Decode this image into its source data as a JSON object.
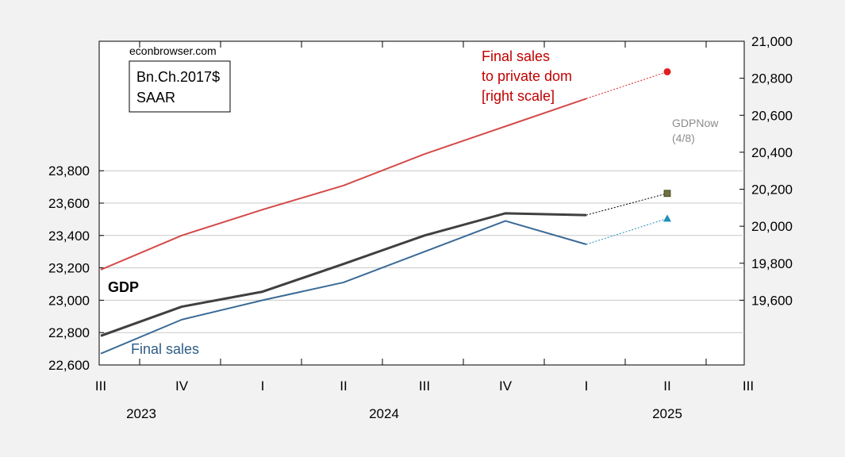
{
  "chart_data": {
    "type": "line",
    "source_label": "econbrowser.com",
    "units_box": [
      "Bn.Ch.2017$",
      "SAAR"
    ],
    "x_quarter_labels": [
      "III",
      "IV",
      "I",
      "II",
      "III",
      "IV",
      "I",
      "II",
      "III"
    ],
    "x_year_labels": [
      {
        "label": "2023",
        "quarter_index": 0.5
      },
      {
        "label": "2024",
        "quarter_index": 3.5
      },
      {
        "label": "2025",
        "quarter_index": 7.0
      }
    ],
    "left_axis": {
      "min": 22600,
      "max": 24600,
      "ticks": [
        22600,
        22800,
        23000,
        23200,
        23400,
        23600,
        23800
      ],
      "tick_labels": [
        "22,600",
        "22,800",
        "23,000",
        "23,200",
        "23,400",
        "23,600",
        "23,800"
      ]
    },
    "right_axis": {
      "min": 19250,
      "max": 21000,
      "ticks": [
        19600,
        19800,
        20000,
        20200,
        20400,
        20600,
        20800,
        21000
      ],
      "tick_labels": [
        "19,600",
        "19,800",
        "20,000",
        "20,200",
        "20,400",
        "20,600",
        "20,800",
        "21,000"
      ]
    },
    "series": [
      {
        "name": "GDP",
        "axis": "left",
        "color": "#404040",
        "x": [
          "2023Q3",
          "2023Q4",
          "2024Q1",
          "2024Q2",
          "2024Q3",
          "2024Q4",
          "2025Q1"
        ],
        "values": [
          22780,
          22960,
          23053,
          23224,
          23400,
          23537,
          23526
        ]
      },
      {
        "name": "Final sales",
        "axis": "left",
        "color": "#3a6a96",
        "x": [
          "2023Q3",
          "2023Q4",
          "2024Q1",
          "2024Q2",
          "2024Q3",
          "2024Q4",
          "2025Q1"
        ],
        "values": [
          22670,
          22880,
          23000,
          23110,
          23300,
          23490,
          23345
        ]
      },
      {
        "name": "Final sales to private dom [right scale]",
        "axis": "right",
        "color": "#d44a4a",
        "x": [
          "2023Q3",
          "2023Q4",
          "2024Q1",
          "2024Q2",
          "2024Q3",
          "2024Q4",
          "2025Q1"
        ],
        "values": [
          19765,
          19950,
          20090,
          20220,
          20390,
          20540,
          20690
        ]
      }
    ],
    "nowcasts": [
      {
        "series": "GDP",
        "axis": "left",
        "x": "2025Q2",
        "value": 23660,
        "marker": "square",
        "color": "#707040",
        "line_color": "#000000"
      },
      {
        "series": "Final sales",
        "axis": "left",
        "x": "2025Q2",
        "value": 23505,
        "marker": "triangle",
        "color": "#1f8fb8",
        "line_color": "#1f8fb8"
      },
      {
        "series": "Final sales to private dom [right scale]",
        "axis": "right",
        "x": "2025Q2",
        "value": 20835,
        "marker": "circle",
        "color": "#e02020",
        "line_color": "#e02020"
      }
    ],
    "annotations": {
      "gdp_label": "GDP",
      "final_sales_label": "Final sales",
      "private_dom_lines": [
        "Final sales",
        "to private dom",
        "[right scale]"
      ],
      "gdpnow_lines": [
        "GDPNow",
        "(4/8)"
      ]
    },
    "colors": {
      "gdp": "#404040",
      "final_sales": "#3a6a96",
      "private_dom": "#d44a4a",
      "gdpnow_text": "#8c8c8c",
      "grid": "#c8c8c8"
    },
    "grid": true
  }
}
